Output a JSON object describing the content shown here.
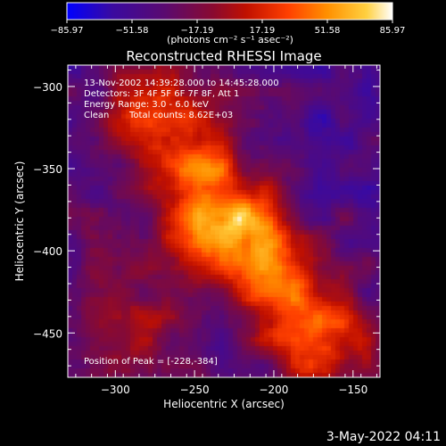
{
  "colorbar": {
    "ticks": [
      "-85.97",
      "-51.58",
      "-17.19",
      "17.19",
      "51.58",
      "85.97"
    ],
    "units": "(photons cm⁻² s⁻¹ asec⁻²)",
    "colormap": [
      "#0000ff",
      "#3a0aa0",
      "#5a0a70",
      "#8a0a30",
      "#c01000",
      "#ff4000",
      "#ff9000",
      "#ffd040",
      "#ffffff"
    ]
  },
  "title": "Reconstructed RHESSI Image",
  "annotations": {
    "line1": "13-Nov-2002 14:39:28.000 to 14:45:28.000",
    "line2": "Detectors: 3F 4F 5F 6F 7F 8F, Att 1",
    "line3": "Energy Range: 3.0 - 6.0 keV",
    "line4_left": "Clean",
    "line4_right": "Total counts: 8.62E+03",
    "peak": "Position of Peak = [-228,-384]"
  },
  "footer_date": "3-May-2022 04:11",
  "chart_data": {
    "type": "heatmap",
    "title": "Reconstructed RHESSI Image",
    "xlabel": "Heliocentric X (arcsec)",
    "ylabel": "Heliocentric Y (arcsec)",
    "xlim": [
      -330,
      -133
    ],
    "ylim": [
      -477,
      -287
    ],
    "xticks": [
      -300,
      -250,
      -200,
      -150
    ],
    "yticks": [
      -300,
      -350,
      -400,
      -450
    ],
    "xtick_labels": [
      "−300",
      "−250",
      "−200",
      "−150"
    ],
    "ytick_labels": [
      "−300",
      "−350",
      "−400",
      "−450"
    ],
    "colorbar_range": [
      -85.97,
      85.97
    ],
    "peak": {
      "x": -228,
      "y": -384
    },
    "emission_ridge": [
      {
        "x": -275,
        "y": -320,
        "level": 0.55
      },
      {
        "x": -255,
        "y": -345,
        "level": 0.75
      },
      {
        "x": -240,
        "y": -370,
        "level": 0.9
      },
      {
        "x": -228,
        "y": -384,
        "level": 1.0
      },
      {
        "x": -210,
        "y": -405,
        "level": 0.85
      },
      {
        "x": -190,
        "y": -430,
        "level": 0.8
      },
      {
        "x": -170,
        "y": -455,
        "level": 0.7
      }
    ]
  }
}
